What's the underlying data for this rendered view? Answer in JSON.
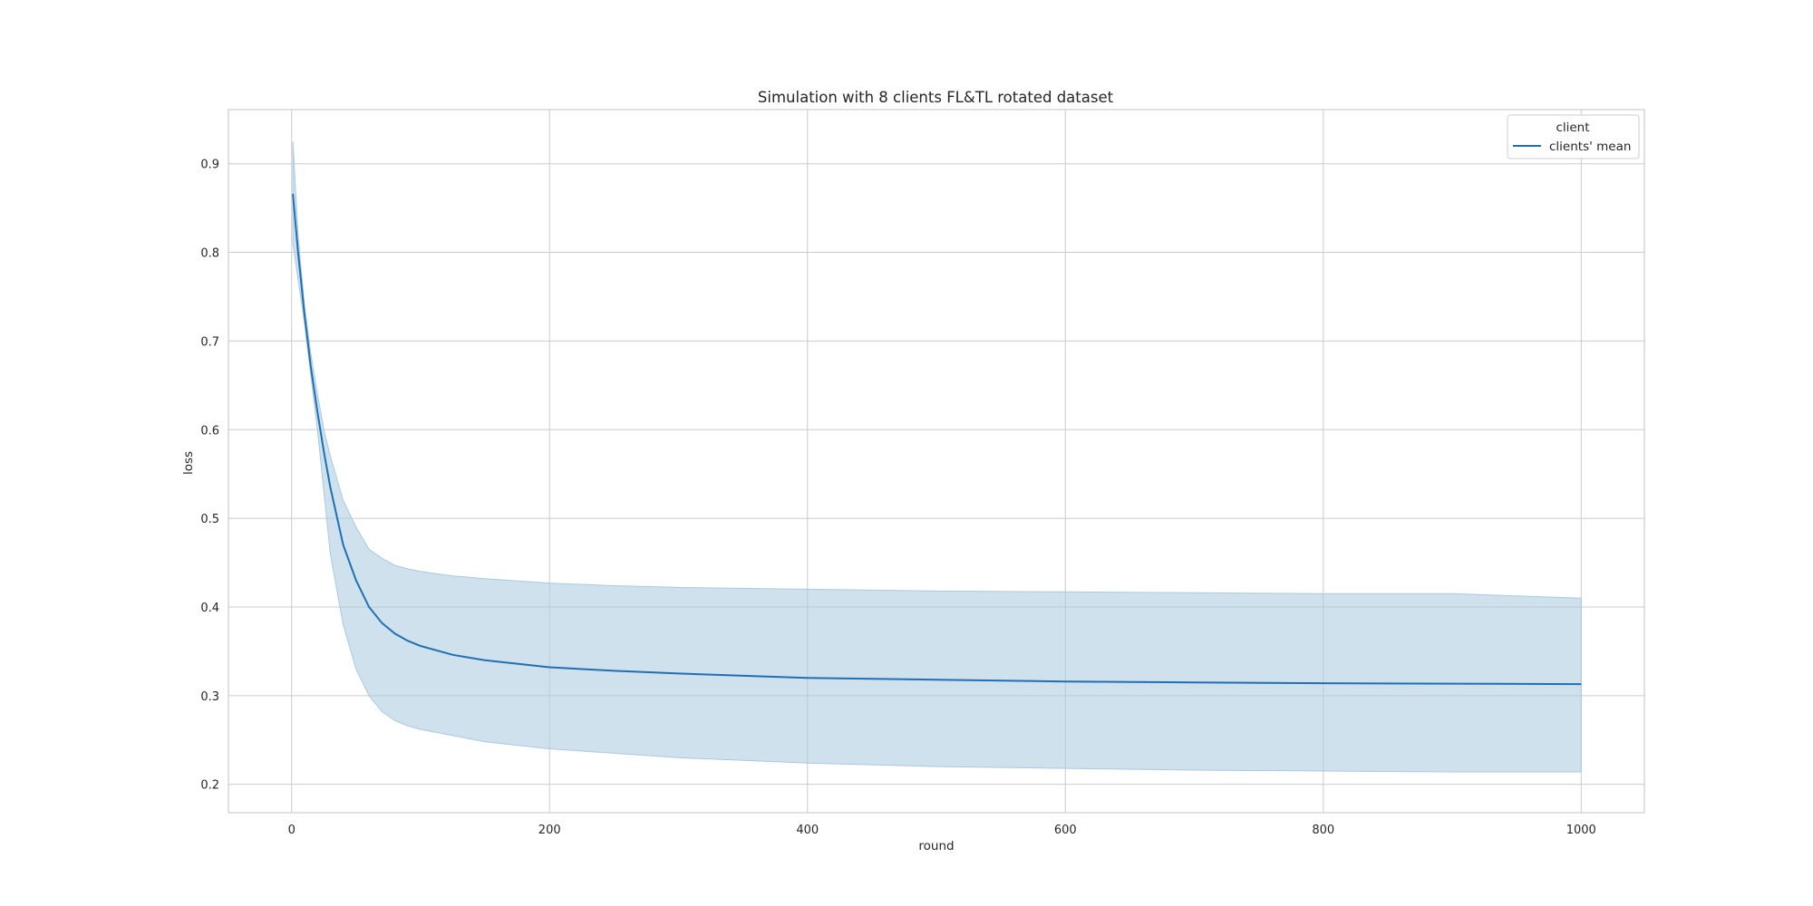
{
  "chart_data": {
    "type": "line",
    "title": "Simulation with 8 clients FL&TL rotated dataset",
    "xlabel": "round",
    "ylabel": "loss",
    "xlim": [
      -49,
      1049
    ],
    "ylim": [
      0.168,
      0.961
    ],
    "xticks": [
      0,
      200,
      400,
      600,
      800,
      1000
    ],
    "xtick_labels": [
      "0",
      "200",
      "400",
      "600",
      "800",
      "1000"
    ],
    "yticks": [
      0.2,
      0.3,
      0.4,
      0.5,
      0.6,
      0.7,
      0.8,
      0.9
    ],
    "ytick_labels": [
      "0.2",
      "0.3",
      "0.4",
      "0.5",
      "0.6",
      "0.7",
      "0.8",
      "0.9"
    ],
    "grid": true,
    "legend": {
      "title": "client",
      "placement": "top-right",
      "entries": [
        "clients' mean"
      ]
    },
    "colors": {
      "line": "#1f6fb4",
      "band": "#a9c8e0"
    },
    "series": [
      {
        "name": "clients' mean",
        "x": [
          1,
          5,
          10,
          15,
          20,
          25,
          30,
          40,
          50,
          60,
          70,
          80,
          90,
          100,
          125,
          150,
          200,
          250,
          300,
          400,
          500,
          600,
          700,
          800,
          900,
          1000
        ],
        "y": [
          0.866,
          0.8,
          0.73,
          0.67,
          0.62,
          0.575,
          0.535,
          0.47,
          0.43,
          0.4,
          0.382,
          0.37,
          0.362,
          0.356,
          0.346,
          0.34,
          0.332,
          0.328,
          0.325,
          0.32,
          0.318,
          0.316,
          0.315,
          0.314,
          0.3135,
          0.313
        ],
        "upper": [
          0.925,
          0.82,
          0.74,
          0.685,
          0.64,
          0.6,
          0.57,
          0.52,
          0.49,
          0.465,
          0.455,
          0.447,
          0.443,
          0.44,
          0.435,
          0.432,
          0.427,
          0.424,
          0.422,
          0.42,
          0.418,
          0.417,
          0.416,
          0.415,
          0.415,
          0.41
        ],
        "lower": [
          0.81,
          0.77,
          0.72,
          0.66,
          0.6,
          0.53,
          0.46,
          0.38,
          0.33,
          0.3,
          0.282,
          0.272,
          0.266,
          0.262,
          0.255,
          0.248,
          0.24,
          0.235,
          0.23,
          0.224,
          0.22,
          0.218,
          0.216,
          0.215,
          0.214,
          0.214
        ]
      }
    ]
  }
}
